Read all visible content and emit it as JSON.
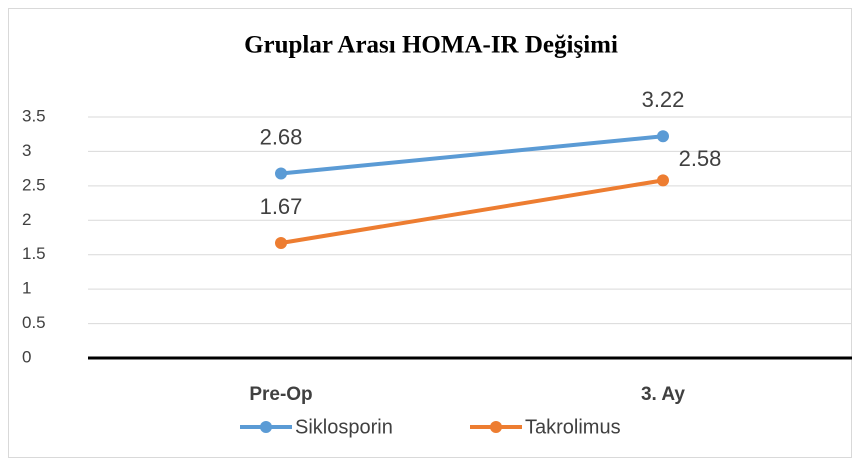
{
  "chart_data": {
    "type": "line",
    "title": "Gruplar Arası HOMA-IR Değişimi",
    "categories": [
      "Pre-Op",
      "3. Ay"
    ],
    "series": [
      {
        "name": "Siklosporin",
        "color": "#5b9bd5",
        "values": [
          2.68,
          3.22
        ]
      },
      {
        "name": "Takrolimus",
        "color": "#ed7d31",
        "values": [
          1.67,
          2.58
        ]
      }
    ],
    "ylim": [
      0,
      3.5
    ],
    "yticks": [
      0,
      0.5,
      1,
      1.5,
      2,
      2.5,
      3,
      3.5
    ],
    "grid": true,
    "legend": "bottom"
  }
}
